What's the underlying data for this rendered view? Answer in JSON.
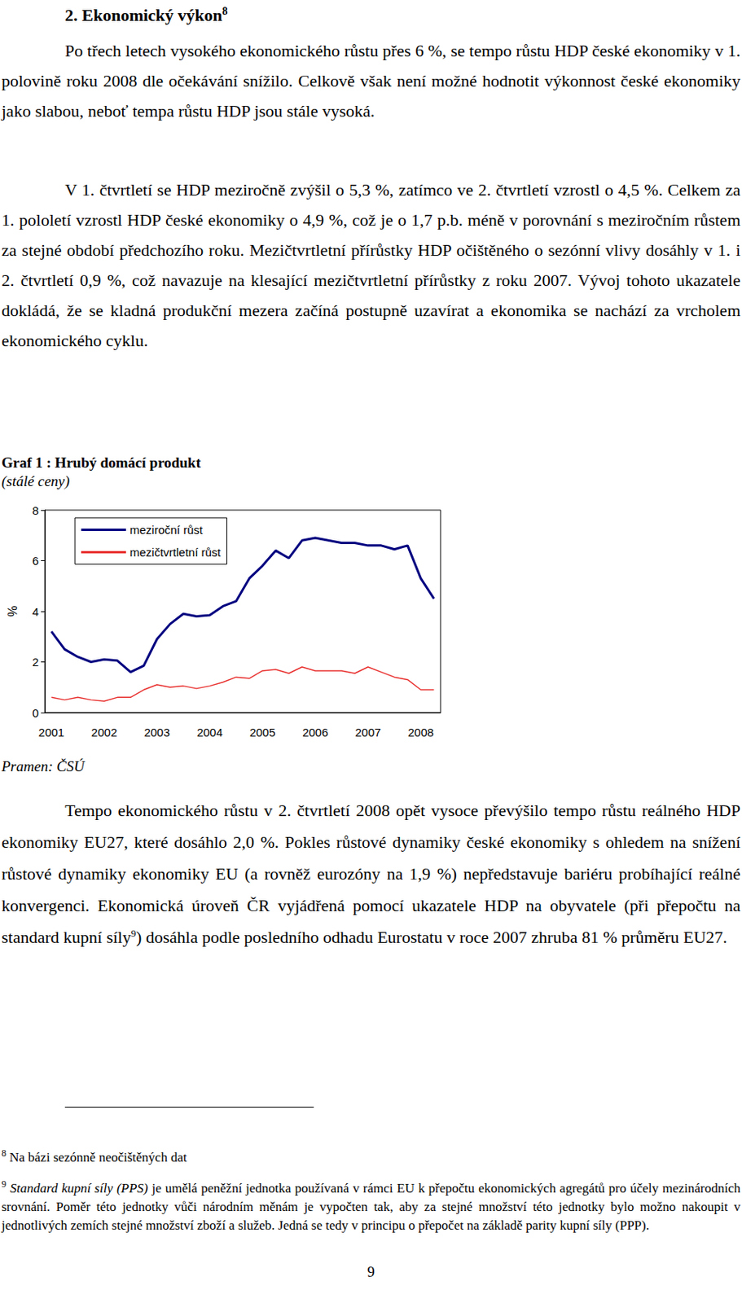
{
  "heading": {
    "text": "2. Ekonomický výkon",
    "footnote_ref": "8"
  },
  "paragraphs_before": [
    [
      "Po třech letech vysokého ekonomického růstu přes 6 %, se tempo růstu HDP české ekonomiky v 1. polovině roku 2008 dle očekávání snížilo. Celkově však není možné hodnotit výkonnost české ekonomiky jako slabou, neboť tempa růstu HDP jsou stále vysoká."
    ],
    [
      "V 1. čtvrtletí se HDP meziročně zvýšil o 5,3 %, zatímco ve 2. čtvrtletí vzrostl o 4,5 %. Celkem za 1. pololetí vzrostl HDP české ekonomiky o 4,9 %, což je o 1,7 p.b. méně v porovnání s meziročním růstem za stejné období předchozího roku. Mezičtvrtletní přírůstky HDP očištěného o sezónní vlivy dosáhly v 1. i 2. čtvrtletí 0,9 %, což navazuje na klesající mezičtvrtletní přírůstky z roku 2007. Vývoj tohoto ukazatele dokládá, že se kladná produkční mezera začíná postupně uzavírat a ekonomika se nachází za vrcholem ekonomického cyklu."
    ]
  ],
  "chart_data": {
    "type": "line",
    "title": "Graf 1 : Hrubý domácí produkt",
    "subtitle": "(stálé ceny)",
    "ylabel": "%",
    "categories": [
      "2001",
      null,
      null,
      null,
      "2002",
      null,
      null,
      null,
      "2003",
      null,
      null,
      null,
      "2004",
      null,
      null,
      null,
      "2005",
      null,
      null,
      null,
      "2006",
      null,
      null,
      null,
      "2007",
      null,
      null,
      null,
      "2008",
      null
    ],
    "series": [
      {
        "name": "meziroční růst",
        "color": "#000080",
        "values": [
          3.2,
          2.5,
          2.2,
          2.0,
          2.1,
          2.05,
          1.6,
          1.85,
          2.9,
          3.5,
          3.9,
          3.8,
          3.85,
          4.2,
          4.4,
          5.3,
          5.8,
          6.4,
          6.1,
          6.8,
          6.9,
          6.8,
          6.7,
          6.7,
          6.6,
          6.6,
          6.45,
          6.6,
          5.3,
          4.5
        ]
      },
      {
        "name": "mezičtvrtletní růst",
        "color": "#e8312f",
        "values": [
          0.6,
          0.5,
          0.6,
          0.5,
          0.45,
          0.6,
          0.6,
          0.9,
          1.1,
          1.0,
          1.05,
          0.95,
          1.05,
          1.2,
          1.4,
          1.35,
          1.65,
          1.7,
          1.55,
          1.8,
          1.65,
          1.65,
          1.65,
          1.55,
          1.8,
          1.6,
          1.4,
          1.3,
          0.9,
          0.9
        ]
      }
    ],
    "ylim": [
      0,
      8
    ],
    "yticks": [
      0,
      2,
      4,
      6,
      8
    ],
    "grid": false,
    "legend": "upper left"
  },
  "source": "Pramen: ČSÚ",
  "paragraphs_after": [
    [
      "Tempo ekonomického růstu v 2. čtvrtletí 2008 opět vysoce převýšilo tempo růstu reálného HDP ekonomiky EU27, které dosáhlo 2,0 %. Pokles růstové dynamiky české ekonomiky s ohledem na snížení růstové dynamiky ekonomiky EU (a rovněž eurozóny na 1,9 %) nepředstavuje bariéru probíhající reálné konvergenci. Ekonomická úroveň ČR vyjádřená pomocí ukazatele HDP na obyvatele (při přepočtu na standard kupní síly",
      {
        "sup": "9"
      },
      ") dosáhla podle posledního odhadu Eurostatu v roce 2007 zhruba 81 % průměru EU27."
    ]
  ],
  "footnotes": [
    {
      "mark": "8",
      "segments": [
        "Na bázi sezónně neočištěných dat"
      ]
    },
    {
      "mark": "9",
      "segments": [
        {
          "em": "Standard kupní síly (PPS)"
        },
        " je umělá peněžní jednotka používaná v rámci EU k přepočtu ekonomických agregátů pro účely mezinárodních srovnání. Poměr této jednotky vůči národním měnám je vypočten tak, aby za stejné množství této jednotky bylo možno nakoupit v jednotlivých zemích stejné množství zboží a služeb. Jedná se tedy v principu o přepočet na základě parity kupní síly (PPP)."
      ]
    }
  ],
  "page_number": "9"
}
